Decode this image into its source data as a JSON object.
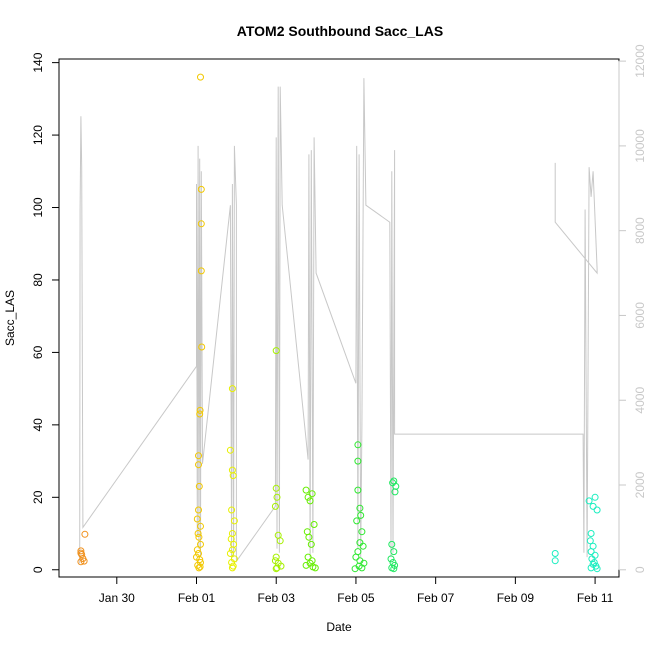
{
  "chart_data": {
    "type": "scatter",
    "title": "ATOM2 Southbound Sacc_LAS",
    "xlabel": "Date",
    "ylabel": "Sacc_LAS",
    "x_ticks": [
      "Jan 30",
      "Feb 01",
      "Feb 03",
      "Feb 05",
      "Feb 07",
      "Feb 09",
      "Feb 11"
    ],
    "y_ticks": [
      0,
      20,
      40,
      60,
      80,
      100,
      120,
      140
    ],
    "y2_ticks": [
      0,
      2000,
      4000,
      6000,
      8000,
      10000,
      12000
    ],
    "xlim_days": [
      -2.45,
      11.6
    ],
    "ylim": [
      -2,
      141
    ],
    "y2lim": [
      -170,
      12050
    ],
    "colors": {
      "line": "#c8c8c8",
      "right_axis": "#c8c8c8"
    },
    "series": [
      {
        "color": "#f0901c",
        "points": [
          [
            -1.9,
            5.2
          ],
          [
            -1.9,
            4.6
          ],
          [
            -1.88,
            4.2
          ],
          [
            -1.85,
            3.1
          ],
          [
            -1.82,
            2.4
          ],
          [
            -1.8,
            9.8
          ],
          [
            -1.9,
            2.2
          ]
        ]
      },
      {
        "color": "#f2c800",
        "points": [
          [
            1.05,
            31.5
          ],
          [
            1.05,
            29.0
          ],
          [
            1.07,
            23.0
          ],
          [
            1.1,
            136.0
          ],
          [
            1.12,
            105.0
          ],
          [
            1.12,
            95.5
          ],
          [
            1.12,
            82.5
          ],
          [
            1.13,
            61.5
          ],
          [
            1.09,
            44.0
          ],
          [
            1.08,
            43.0
          ],
          [
            1.02,
            14.0
          ],
          [
            1.05,
            16.5
          ],
          [
            1.1,
            12.0
          ],
          [
            1.04,
            10.0
          ],
          [
            1.06,
            9.0
          ],
          [
            1.1,
            7.0
          ],
          [
            1.02,
            5.5
          ],
          [
            1.05,
            4.5
          ],
          [
            1.0,
            3.5
          ],
          [
            1.08,
            2.8
          ],
          [
            1.1,
            2.0
          ],
          [
            1.03,
            1.2
          ],
          [
            1.06,
            0.5
          ],
          [
            1.09,
            0.8
          ]
        ]
      },
      {
        "color": "#e8f000",
        "points": [
          [
            1.9,
            50.0
          ],
          [
            1.85,
            33.0
          ],
          [
            1.9,
            27.5
          ],
          [
            1.92,
            26.0
          ],
          [
            1.88,
            16.5
          ],
          [
            1.95,
            13.5
          ],
          [
            1.9,
            10.0
          ],
          [
            1.87,
            8.5
          ],
          [
            1.93,
            7.0
          ],
          [
            1.9,
            5.5
          ],
          [
            1.85,
            4.5
          ],
          [
            1.95,
            3.0
          ],
          [
            1.88,
            2.0
          ],
          [
            1.92,
            1.0
          ],
          [
            1.9,
            0.5
          ]
        ]
      },
      {
        "color": "#a6f000",
        "points": [
          [
            3.0,
            60.5
          ],
          [
            3.0,
            22.5
          ],
          [
            3.02,
            20.0
          ],
          [
            2.98,
            17.5
          ],
          [
            3.05,
            9.5
          ],
          [
            3.1,
            8.0
          ],
          [
            3.0,
            3.5
          ],
          [
            2.98,
            2.5
          ],
          [
            3.05,
            1.8
          ],
          [
            3.12,
            1.0
          ],
          [
            3.02,
            0.5
          ],
          [
            3.0,
            0.3
          ]
        ]
      },
      {
        "color": "#66ee00",
        "points": [
          [
            3.75,
            22.0
          ],
          [
            3.8,
            20.0
          ],
          [
            3.85,
            19.0
          ],
          [
            3.9,
            21.0
          ],
          [
            3.95,
            12.5
          ],
          [
            3.78,
            10.5
          ],
          [
            3.82,
            9.0
          ],
          [
            3.88,
            7.0
          ],
          [
            3.8,
            3.5
          ],
          [
            3.9,
            2.5
          ],
          [
            3.85,
            1.8
          ],
          [
            3.75,
            1.2
          ],
          [
            3.92,
            0.8
          ],
          [
            3.98,
            0.5
          ]
        ]
      },
      {
        "color": "#2ee830",
        "points": [
          [
            5.05,
            34.5
          ],
          [
            5.05,
            30.0
          ],
          [
            5.05,
            22.0
          ],
          [
            5.1,
            17.0
          ],
          [
            5.12,
            15.0
          ],
          [
            5.02,
            13.5
          ],
          [
            5.15,
            10.5
          ],
          [
            5.1,
            7.5
          ],
          [
            5.18,
            6.5
          ],
          [
            5.05,
            5.0
          ],
          [
            5.0,
            3.5
          ],
          [
            5.1,
            2.5
          ],
          [
            5.2,
            1.8
          ],
          [
            5.08,
            1.0
          ],
          [
            5.15,
            0.5
          ],
          [
            4.98,
            0.3
          ]
        ]
      },
      {
        "color": "#1ee860",
        "points": [
          [
            5.95,
            24.5
          ],
          [
            5.92,
            24.0
          ],
          [
            5.98,
            21.5
          ],
          [
            6.0,
            23.0
          ],
          [
            5.9,
            7.0
          ],
          [
            5.95,
            5.0
          ],
          [
            5.88,
            3.0
          ],
          [
            5.93,
            2.0
          ],
          [
            5.97,
            1.2
          ],
          [
            5.9,
            0.5
          ],
          [
            5.95,
            0.3
          ]
        ]
      },
      {
        "color": "#1aeec0",
        "points": [
          [
            10.0,
            4.5
          ],
          [
            10.0,
            2.5
          ],
          [
            10.85,
            19.0
          ],
          [
            11.0,
            20.0
          ],
          [
            11.05,
            16.5
          ],
          [
            10.95,
            17.5
          ],
          [
            10.9,
            10.0
          ],
          [
            10.88,
            8.0
          ],
          [
            10.95,
            6.5
          ],
          [
            10.9,
            5.0
          ],
          [
            11.0,
            4.0
          ],
          [
            10.92,
            3.0
          ],
          [
            10.98,
            2.0
          ],
          [
            10.95,
            1.5
          ],
          [
            11.02,
            1.0
          ],
          [
            10.9,
            0.5
          ],
          [
            11.05,
            0.3
          ]
        ]
      }
    ],
    "line_y2": [
      [
        -1.93,
        150
      ],
      [
        -1.92,
        8500
      ],
      [
        -1.9,
        10700
      ],
      [
        -1.88,
        9500
      ],
      [
        -1.85,
        1000
      ],
      [
        1.0,
        4800
      ],
      [
        1.0,
        9100
      ],
      [
        1.02,
        800
      ],
      [
        1.04,
        10000
      ],
      [
        1.06,
        500
      ],
      [
        1.08,
        9700
      ],
      [
        1.1,
        300
      ],
      [
        1.12,
        9400
      ],
      [
        1.15,
        2500
      ],
      [
        1.85,
        8600
      ],
      [
        1.88,
        200
      ],
      [
        1.9,
        9100
      ],
      [
        1.93,
        300
      ],
      [
        1.95,
        10000
      ],
      [
        2.0,
        8600
      ],
      [
        2.0,
        200
      ],
      [
        2.98,
        1500
      ],
      [
        3.0,
        10200
      ],
      [
        3.02,
        500
      ],
      [
        3.05,
        11400
      ],
      [
        3.08,
        400
      ],
      [
        3.1,
        11400
      ],
      [
        3.15,
        8600
      ],
      [
        3.8,
        2600
      ],
      [
        3.82,
        9800
      ],
      [
        3.85,
        300
      ],
      [
        3.88,
        9900
      ],
      [
        3.92,
        400
      ],
      [
        3.95,
        10200
      ],
      [
        4.0,
        7000
      ],
      [
        5.0,
        4400
      ],
      [
        5.02,
        10000
      ],
      [
        5.05,
        500
      ],
      [
        5.08,
        9800
      ],
      [
        5.12,
        300
      ],
      [
        5.15,
        3400
      ],
      [
        5.2,
        11600
      ],
      [
        5.25,
        8600
      ],
      [
        5.85,
        8200
      ],
      [
        5.88,
        300
      ],
      [
        5.9,
        9400
      ],
      [
        5.93,
        400
      ],
      [
        5.97,
        9900
      ],
      [
        5.97,
        3200
      ],
      [
        10.7,
        3200
      ],
      [
        10.72,
        400
      ],
      [
        10.75,
        8500
      ],
      [
        10.8,
        300
      ],
      [
        10.85,
        9500
      ],
      [
        10.9,
        8800
      ],
      [
        10.95,
        9400
      ],
      [
        11.05,
        7100
      ],
      [
        11.05,
        7000
      ],
      [
        10.0,
        8200
      ],
      [
        10.0,
        9600
      ]
    ]
  }
}
